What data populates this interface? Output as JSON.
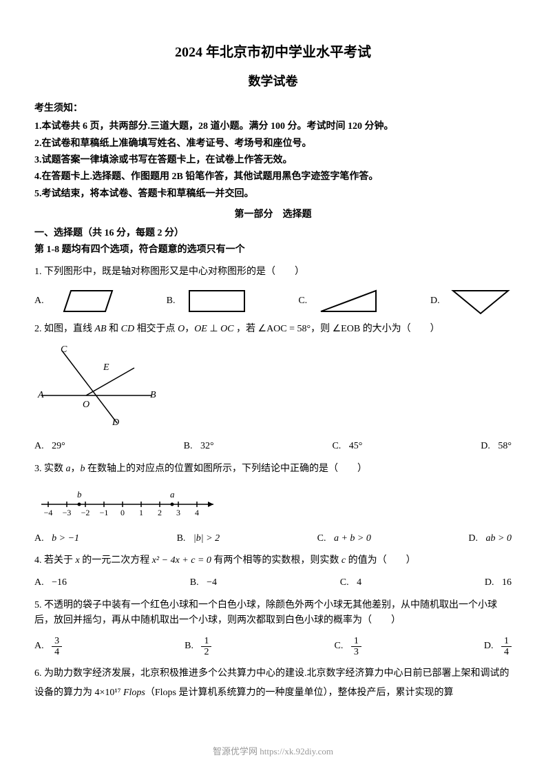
{
  "title_main": "2024 年北京市初中学业水平考试",
  "title_sub": "数学试卷",
  "instructions_header": "考生须知：",
  "instructions": [
    "1.本试卷共 6 页，共两部分.三道大题，28 道小题。满分 100 分。考试时间 120 分钟。",
    "2.在试卷和草稿纸上准确填写姓名、准考证号、考场号和座位号。",
    "3.试题答案一律填涂或书写在答题卡上，在试卷上作答无效。",
    "4.在答题卡上.选择题、作图题用 2B 铅笔作答，其他试题用黑色字迹签字笔作答。",
    "5.考试结束，将本试卷、答题卡和草稿纸一并交回。"
  ],
  "part1_header": "第一部分　选择题",
  "section1_header": "一、选择题（共 16 分，每题 2 分）",
  "section1_sub": "第 1-8 题均有四个选项，符合题意的选项只有一个",
  "q1": {
    "text": "1. 下列图形中，既是轴对称图形又是中心对称图形的是（　　）",
    "options": [
      "A.",
      "B.",
      "C.",
      "D."
    ],
    "shapes": {
      "stroke": "#000",
      "stroke_width": 2
    }
  },
  "q2": {
    "text_pre": "2. 如图，直线 ",
    "ab": "AB",
    "text_mid1": " 和 ",
    "cd": "CD",
    "text_mid2": " 相交于点 ",
    "o": "O",
    "text_mid3": "，",
    "oe": "OE",
    "perp": " ⊥ ",
    "oc": "OC",
    "text_mid4": " ，若 ",
    "angle1": "∠AOC = 58°",
    "text_mid5": "，则 ",
    "angle2": "∠EOB",
    "text_end": " 的大小为（　　）",
    "diagram": {
      "labels": {
        "C": "C",
        "E": "E",
        "A": "A",
        "O": "O",
        "B": "B",
        "D": "D"
      },
      "stroke": "#000"
    },
    "options": {
      "A": "29°",
      "B": "32°",
      "C": "45°",
      "D": "58°"
    }
  },
  "q3": {
    "text_pre": "3. 实数 ",
    "a": "a",
    "comma": "，",
    "b": "b",
    "text_end": " 在数轴上的对应点的位置如图所示，下列结论中正确的是（　　）",
    "numberline": {
      "ticks": [
        "−4",
        "−3",
        "−2",
        "−1",
        "0",
        "1",
        "2",
        "3",
        "4"
      ],
      "b_pos": -2.5,
      "a_pos": 2.5,
      "b_label": "b",
      "a_label": "a"
    },
    "options": {
      "A": "b > −1",
      "B": "|b| > 2",
      "C": "a + b > 0",
      "D": "ab > 0"
    }
  },
  "q4": {
    "text_pre": "4. 若关于 ",
    "x": "x",
    "text_mid1": " 的一元二次方程 ",
    "eq": "x² − 4x + c = 0",
    "text_mid2": " 有两个相等的实数根，则实数 ",
    "c": "c",
    "text_end": " 的值为（　　）",
    "options": {
      "A": "−16",
      "B": "−4",
      "C": "4",
      "D": "16"
    }
  },
  "q5": {
    "text": "5. 不透明的袋子中装有一个红色小球和一个白色小球，除颜色外两个小球无其他差别，从中随机取出一个小球后，放回并摇匀，再从中随机取出一个小球，则两次都取到白色小球的概率为（　　）",
    "options": {
      "A": {
        "num": "3",
        "den": "4"
      },
      "B": {
        "num": "1",
        "den": "2"
      },
      "C": {
        "num": "1",
        "den": "3"
      },
      "D": {
        "num": "1",
        "den": "4"
      }
    }
  },
  "q6": {
    "text_pre": "6. 为助力数字经济发展，北京积极推进多个公共算力中心的建设.北京数字经济算力中心日前已部署上架和调试的设备的算力为 ",
    "value": "4×10¹⁷",
    "flops": " Flops",
    "note": "（Flops 是计算机系统算力的一种度量单位）",
    "text_end": "，整体投产后，累计实现的算"
  },
  "footer": "智源优学网 https://xk.92diy.com"
}
